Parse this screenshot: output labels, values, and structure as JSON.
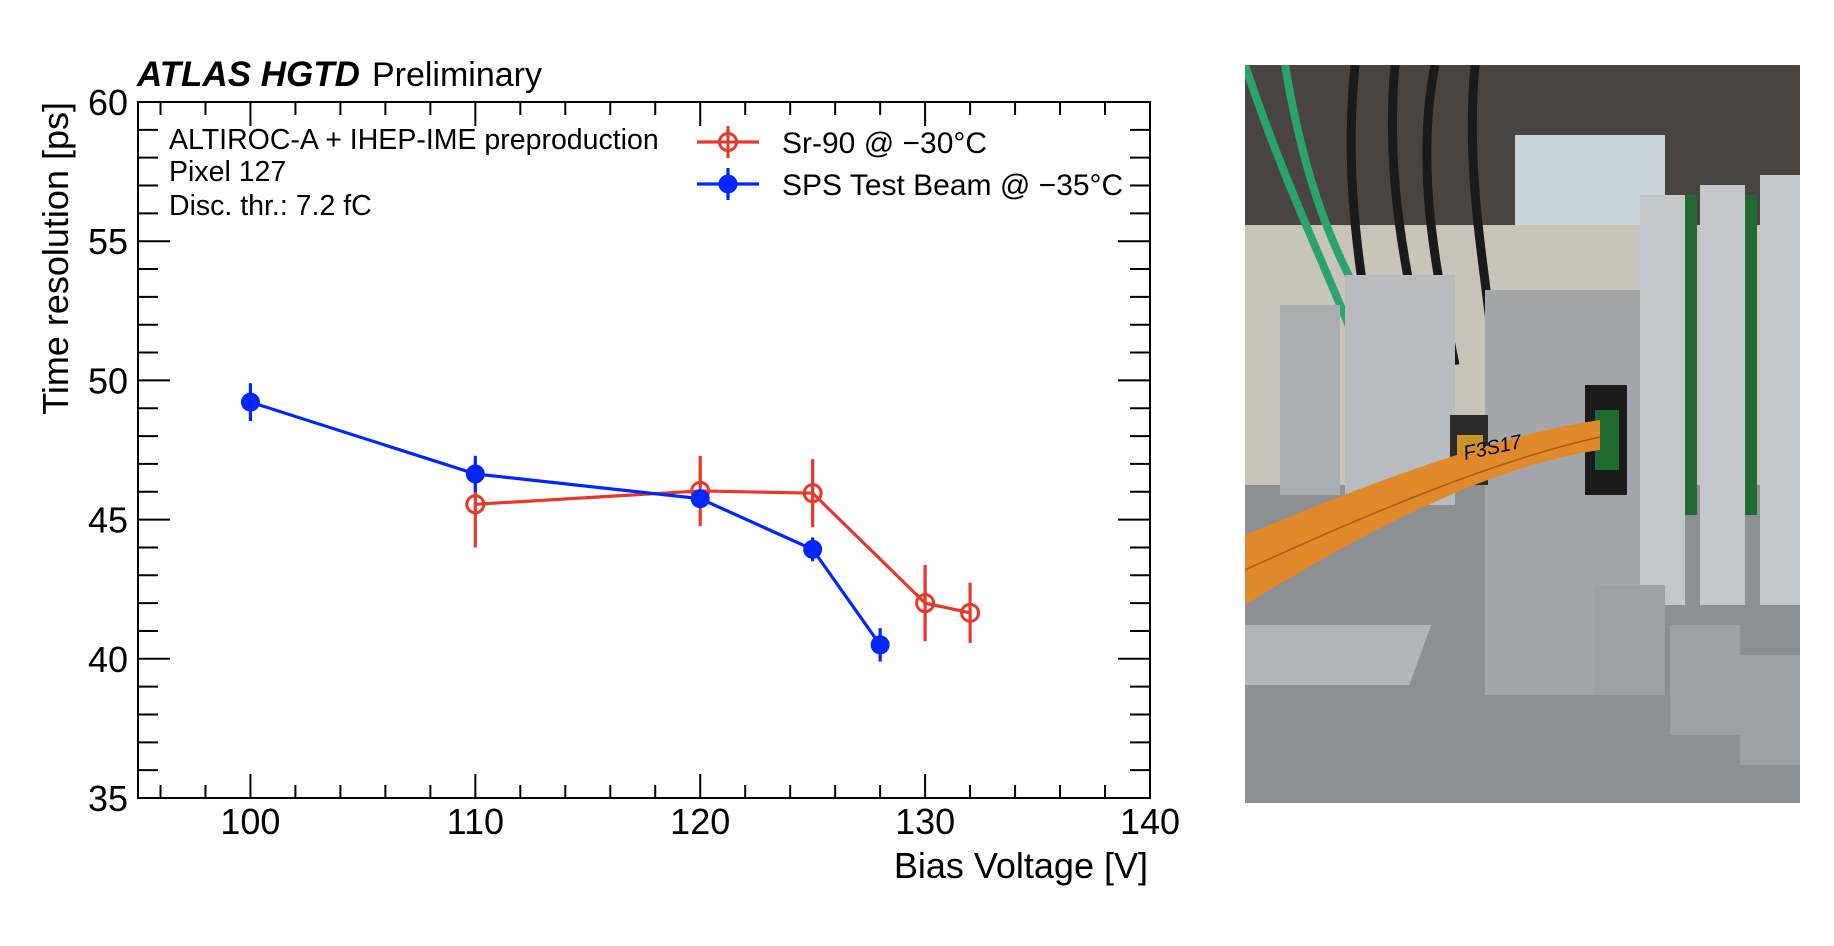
{
  "chart_data": {
    "type": "line",
    "title": {
      "experiment": "ATLAS HGTD",
      "status": "Preliminary"
    },
    "annotations": [
      "ALTIROC-A + IHEP-IME preproduction",
      "Pixel 127",
      "Disc. thr.: 7.2 fC"
    ],
    "xlabel": "Bias Voltage [V]",
    "ylabel": "Time resolution [ps]",
    "xlim": [
      95,
      140
    ],
    "ylim": [
      35,
      60
    ],
    "xticks": [
      "100",
      "110",
      "120",
      "130",
      "140"
    ],
    "xtick_values": [
      100,
      110,
      120,
      130,
      140
    ],
    "yticks": [
      "35",
      "40",
      "45",
      "50",
      "55",
      "60"
    ],
    "ytick_values": [
      35,
      40,
      45,
      50,
      55,
      60
    ],
    "x_minor_step": 2,
    "y_minor_step": 1,
    "grid": false,
    "legend_position": "top-right",
    "series": [
      {
        "name": "Sr-90 @ −30°C",
        "color": "#e8382b",
        "marker": "open-circle",
        "x": [
          110,
          120,
          125,
          130,
          132
        ],
        "y": [
          45.55,
          46.03,
          45.95,
          42.0,
          41.65
        ],
        "yerr": [
          1.55,
          1.26,
          1.22,
          1.37,
          1.08
        ]
      },
      {
        "name": "SPS Test Beam @ −35°C",
        "color": "#0026ff",
        "marker": "filled-circle",
        "x": [
          100,
          110,
          120,
          125,
          128
        ],
        "y": [
          49.22,
          46.64,
          45.75,
          43.93,
          40.5
        ],
        "yerr": [
          0.68,
          0.65,
          0.3,
          0.43,
          0.6
        ]
      }
    ]
  },
  "photo": {
    "description_label": "detector setup photo",
    "cable_label": "F3S17",
    "colors": {
      "background": "#5a5049",
      "aluminium": "#b8bcc0",
      "flex_cable": "#e0892a",
      "pcb_green": "#1f6b32",
      "cable_black": "#1a1a1a",
      "cable_green": "#2aa36e"
    }
  }
}
